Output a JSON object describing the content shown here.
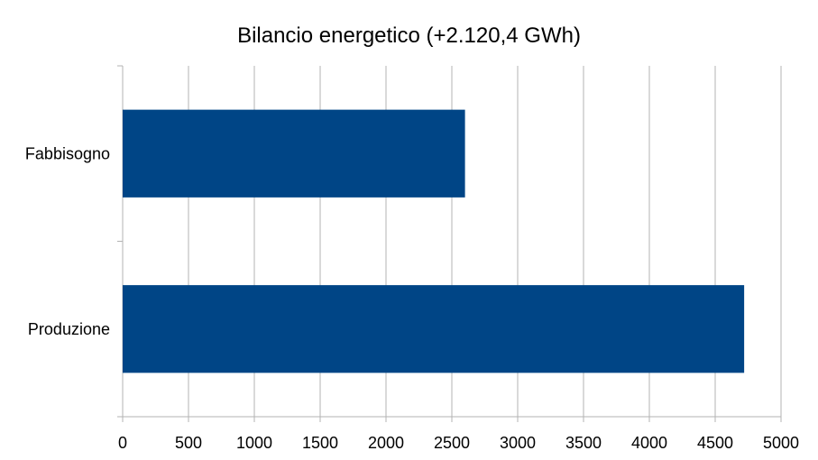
{
  "chart_data": {
    "type": "bar",
    "orientation": "horizontal",
    "title": "Bilancio energetico (+2.120,4 GWh)",
    "categories": [
      "Fabbisogno",
      "Produzione"
    ],
    "values": [
      2600,
      4720
    ],
    "xlim": [
      0,
      5000
    ],
    "xticks": [
      0,
      500,
      1000,
      1500,
      2000,
      2500,
      3000,
      3500,
      4000,
      4500,
      5000
    ],
    "grid": true,
    "legend": "none",
    "colors": {
      "bar": "#004586",
      "grid": "#b3b3b3",
      "axis": "#b3b3b3"
    }
  }
}
